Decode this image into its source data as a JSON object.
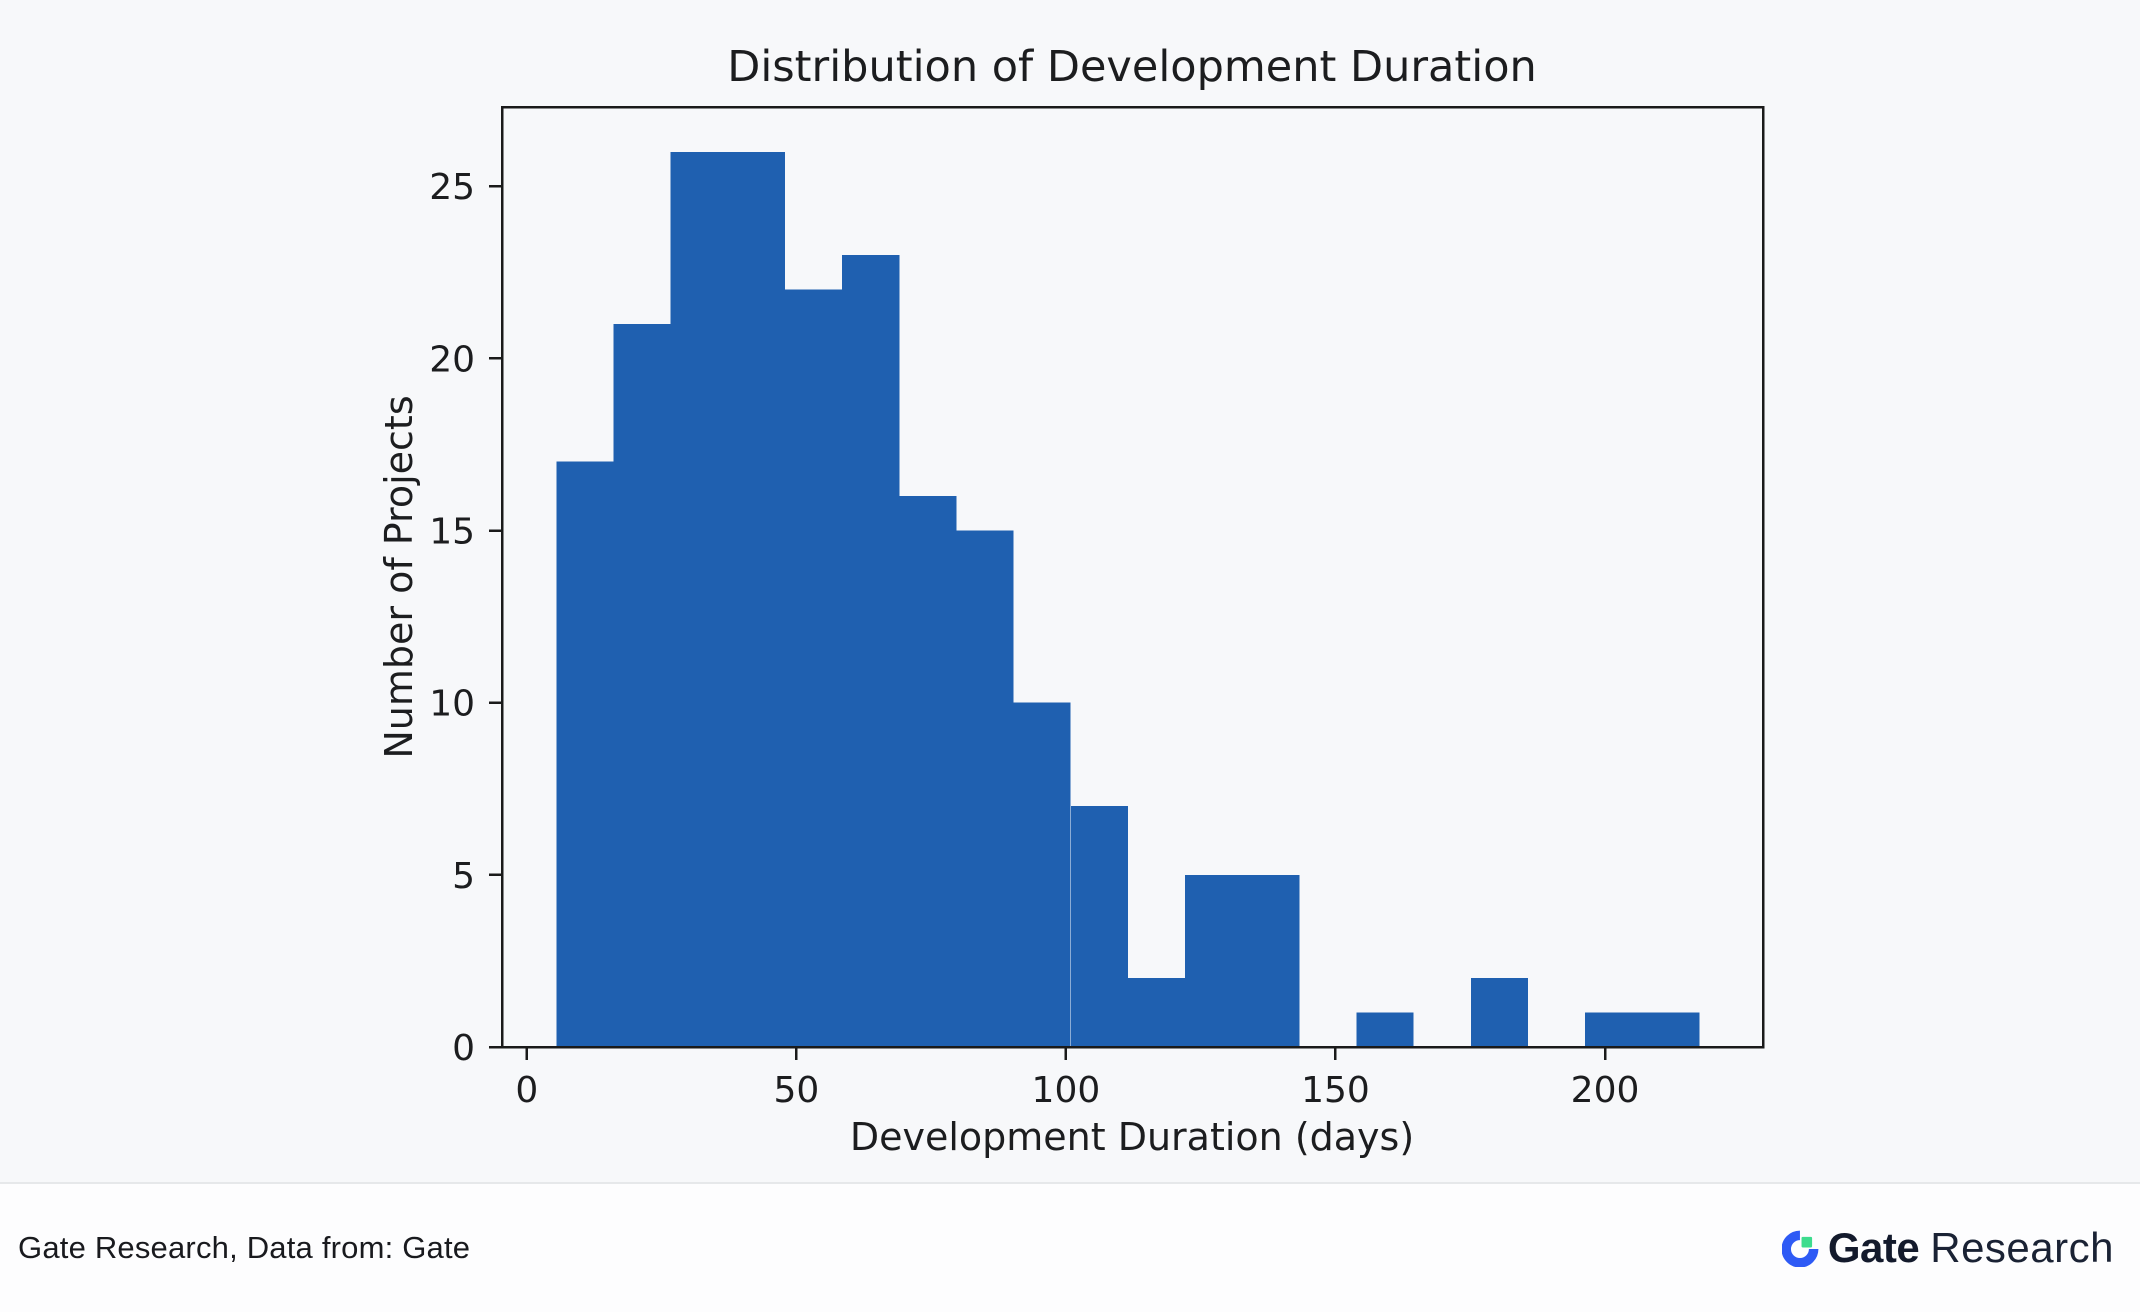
{
  "page": {
    "background": "#f7f8fa"
  },
  "chart": {
    "bar_color": "#1f60b0",
    "axis_color": "#1a1a1a",
    "plot_bg": "#f7f8fa"
  },
  "chart_data": {
    "type": "bar",
    "subtype": "histogram",
    "title": "Distribution of Development Duration",
    "xlabel": "Development Duration (days)",
    "ylabel": "Number of Projects",
    "bin_start": 5.5,
    "bin_width": 10.6,
    "counts": [
      17,
      21,
      26,
      26,
      22,
      23,
      16,
      15,
      10,
      7,
      2,
      5,
      5,
      0,
      1,
      0,
      2,
      0,
      1,
      1
    ],
    "xticks": [
      0,
      50,
      100,
      150,
      200
    ],
    "yticks": [
      0,
      5,
      10,
      15,
      20,
      25
    ],
    "xlim": [
      -4.6,
      229.3
    ],
    "ylim": [
      0,
      27.3
    ],
    "grid": false,
    "legend": "none"
  },
  "footer": {
    "source_text": "Gate Research, Data from: Gate",
    "logo": {
      "brand_bold": "Gate",
      "brand_regular": "Research",
      "mark_blue": "#2e5af5",
      "mark_green": "#3ddc8e",
      "text_color": "#131a2c"
    }
  }
}
